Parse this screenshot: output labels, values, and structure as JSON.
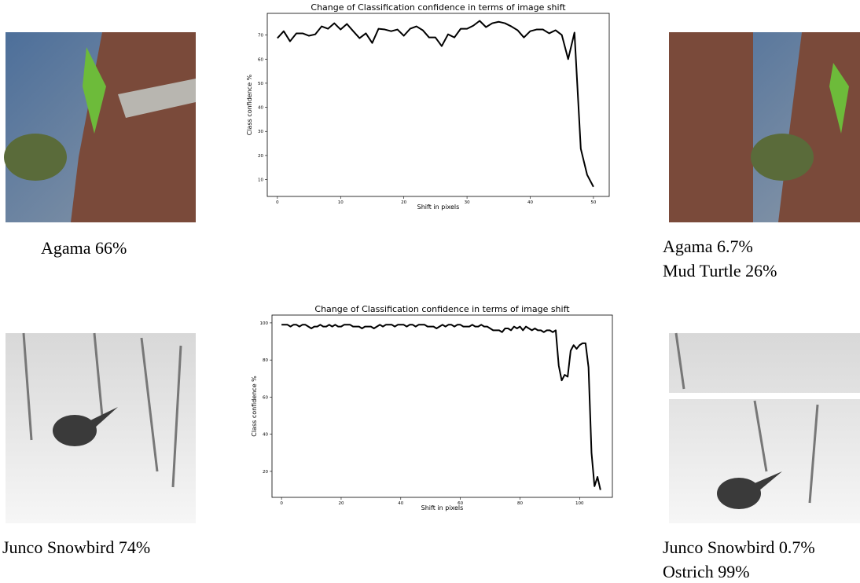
{
  "chart_data": [
    {
      "type": "line",
      "title": "Change of Classification confidence in terms of image shift",
      "x_label": "Shift in pixels",
      "y_label": "Class confidence  %",
      "color": "#000000",
      "x": [
        0,
        1,
        2,
        3,
        4,
        5,
        6,
        7,
        8,
        9,
        10,
        11,
        12,
        13,
        14,
        15,
        16,
        17,
        18,
        19,
        20,
        21,
        22,
        23,
        24,
        25,
        26,
        27,
        28,
        29,
        30,
        31,
        32,
        33,
        34,
        35,
        36,
        37,
        38,
        39,
        40,
        41,
        42,
        43,
        44,
        45,
        46,
        47,
        48,
        49,
        50
      ],
      "values": [
        68.7,
        71.6,
        67.4,
        70.7,
        70.7,
        69.7,
        70.3,
        73.6,
        72.6,
        74.9,
        72.3,
        74.6,
        71.6,
        68.7,
        70.7,
        66.7,
        72.6,
        72.3,
        71.6,
        72.3,
        69.7,
        72.6,
        73.6,
        72,
        69,
        69,
        65.4,
        70.3,
        69,
        72.6,
        72.6,
        73.9,
        75.9,
        73.3,
        74.9,
        75.5,
        74.9,
        73.6,
        72,
        69,
        71.6,
        72.3,
        72.3,
        70.7,
        72,
        70,
        60,
        71,
        22.8,
        12,
        7
      ],
      "xlim": [
        -1.6,
        52.5
      ],
      "xticks": [
        0,
        10,
        20,
        30,
        40,
        50
      ],
      "ylim": [
        3,
        79
      ],
      "yticks": [
        10,
        20,
        30,
        40,
        50,
        60,
        70
      ]
    },
    {
      "type": "line",
      "title": "Change of Classification confidence in terms of image shift",
      "x_label": "Shift in pixels",
      "y_label": "Class confidence  %",
      "color": "#000000",
      "x": [
        0,
        1,
        2,
        3,
        4,
        5,
        6,
        7,
        8,
        9,
        10,
        11,
        12,
        13,
        14,
        15,
        16,
        17,
        18,
        19,
        20,
        21,
        22,
        23,
        24,
        25,
        26,
        27,
        28,
        29,
        30,
        31,
        32,
        33,
        34,
        35,
        36,
        37,
        38,
        39,
        40,
        41,
        42,
        43,
        44,
        45,
        46,
        47,
        48,
        49,
        50,
        51,
        52,
        53,
        54,
        55,
        56,
        57,
        58,
        59,
        60,
        61,
        62,
        63,
        64,
        65,
        66,
        67,
        68,
        69,
        70,
        71,
        72,
        73,
        74,
        75,
        76,
        77,
        78,
        79,
        80,
        81,
        82,
        83,
        84,
        85,
        86,
        87,
        88,
        89,
        90,
        91,
        92,
        93,
        94,
        95,
        96,
        97,
        98,
        99,
        100,
        101,
        102,
        103,
        104,
        105,
        106,
        107
      ],
      "values": [
        99,
        99,
        99,
        98,
        99,
        99,
        98,
        99,
        99,
        98,
        97,
        98,
        98,
        99,
        98,
        98,
        99,
        98,
        99,
        98,
        98,
        99,
        99,
        99,
        98,
        98,
        98,
        97,
        98,
        98,
        98,
        97,
        98,
        99,
        98,
        99,
        99,
        99,
        98,
        99,
        99,
        99,
        98,
        99,
        99,
        98,
        99,
        99,
        99,
        98,
        98,
        98,
        97,
        98,
        99,
        98,
        99,
        99,
        98,
        99,
        99,
        98,
        98,
        98,
        99,
        98,
        98,
        99,
        98,
        98,
        97,
        96,
        96,
        96,
        95,
        97,
        97,
        96,
        98,
        97,
        98,
        96,
        98,
        97,
        96,
        97,
        96,
        96,
        95,
        96,
        96,
        95,
        96,
        77,
        69,
        72,
        71,
        85,
        88,
        86,
        88,
        89,
        89,
        76,
        30,
        12,
        17,
        10
      ],
      "xlim": [
        -3.2,
        111
      ],
      "xticks": [
        0,
        20,
        40,
        60,
        80,
        100
      ],
      "ylim": [
        6,
        104.2
      ],
      "yticks": [
        20,
        40,
        60,
        80,
        100
      ]
    }
  ],
  "captions": [
    {
      "lines": [
        "Agama 66%"
      ]
    },
    {
      "lines": [
        "Agama 6.7%",
        "Mud Turtle 26%"
      ]
    },
    {
      "lines": [
        "Junco Snowbird 74%"
      ]
    },
    {
      "lines": [
        "Junco Snowbird 0.7%",
        "Ostrich 99%"
      ]
    }
  ]
}
